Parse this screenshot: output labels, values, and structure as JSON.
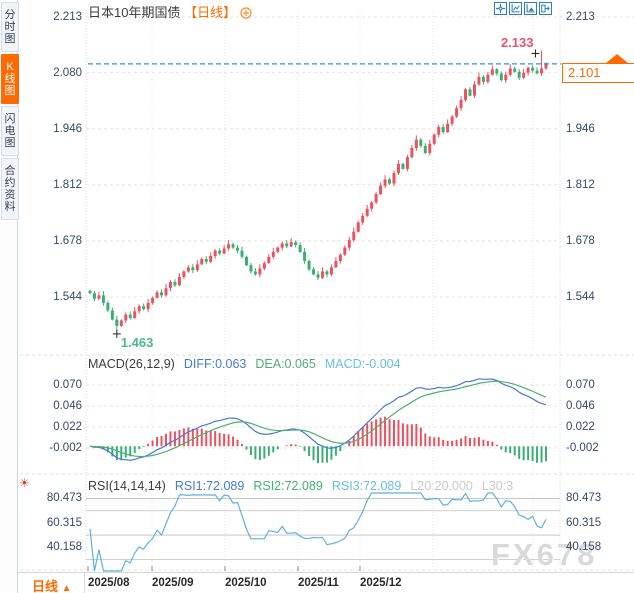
{
  "app": {
    "watermark": "FX678"
  },
  "sidebar": {
    "items": [
      {
        "label": "分时图",
        "active": false
      },
      {
        "label": "K线图",
        "active": true
      },
      {
        "label": "闪电图",
        "active": false
      },
      {
        "label": "合约资料",
        "active": false
      }
    ]
  },
  "header": {
    "title": "日本10年期国债",
    "interval_badge": "【日线】"
  },
  "toolbar": {
    "icons": [
      "crosshair",
      "axis-scale",
      "draw-chart",
      "export"
    ]
  },
  "icons": [
    "circle-plus-icon",
    "sun-icon",
    "up-triangle-alert-icon"
  ],
  "colors": {
    "up": "#e8535f",
    "down": "#3aae73",
    "accent": "#ff6a00",
    "diff": "#4679d2",
    "dea": "#4fae6f",
    "macd_val": "#66c0dd",
    "rsi": "#5fb0e0",
    "last_line": "#2b8ff0",
    "axis_text": "#35476b",
    "high_ann": "#e8546a",
    "low_ann": "#4cb795",
    "muted": "#c9c9c9"
  },
  "price_axis": {
    "left": [
      "2.213",
      "2.080",
      "1.946",
      "1.812",
      "1.678",
      "1.544"
    ],
    "right": [
      "2.213",
      "1.946",
      "1.812",
      "1.678",
      "1.544"
    ]
  },
  "indicators": {
    "macd": {
      "name": "MACD(26,12,9)",
      "values": [
        {
          "text": "DIFF:0.063",
          "color": "#4679d2"
        },
        {
          "text": "DEA:0.065",
          "color": "#4fae6f"
        },
        {
          "text": "MACD:-0.004",
          "color": "#66c0dd"
        }
      ],
      "y_ticks": [
        "0.070",
        "0.046",
        "0.022",
        "-0.002"
      ]
    },
    "rsi": {
      "name": "RSI(14,14,14)",
      "values": [
        {
          "text": "RSI1:72.089",
          "color": "#4679d2"
        },
        {
          "text": "RSI2:72.089",
          "color": "#3eb370"
        },
        {
          "text": "RSI3:72.089",
          "color": "#66c0dd"
        },
        {
          "text": "L20:20.000",
          "color": "#c9c9c9"
        },
        {
          "text": "L30:3",
          "color": "#c9c9c9"
        }
      ],
      "y_ticks": [
        "80.473",
        "60.315",
        "40.158"
      ]
    }
  },
  "bottom_bar": {
    "period": "日线",
    "arrow": "▲",
    "dates": [
      "2025/08",
      "2025/09",
      "2025/10",
      "2025/11",
      "2025/12"
    ]
  },
  "annotations": {
    "high": "2.133",
    "low": "1.463",
    "last": "2.101"
  },
  "chart_data": [
    {
      "type": "candlestick",
      "title": "日本10年期国债 日线",
      "x_labels": [
        "2025/08",
        "2025/09",
        "2025/10",
        "2025/11",
        "2025/12"
      ],
      "y_ticks": [
        2.213,
        2.08,
        1.946,
        1.812,
        1.678,
        1.544
      ],
      "ylim": [
        1.41,
        2.24
      ],
      "closes": [
        1.553,
        1.54,
        1.548,
        1.53,
        1.512,
        1.49,
        1.475,
        1.488,
        1.502,
        1.494,
        1.51,
        1.522,
        1.515,
        1.53,
        1.542,
        1.555,
        1.548,
        1.565,
        1.58,
        1.572,
        1.592,
        1.605,
        1.615,
        1.608,
        1.622,
        1.635,
        1.628,
        1.642,
        1.655,
        1.648,
        1.66,
        1.67,
        1.662,
        1.655,
        1.64,
        1.62,
        1.605,
        1.598,
        1.612,
        1.625,
        1.64,
        1.652,
        1.662,
        1.672,
        1.665,
        1.675,
        1.668,
        1.652,
        1.63,
        1.61,
        1.598,
        1.59,
        1.605,
        1.598,
        1.615,
        1.63,
        1.645,
        1.662,
        1.68,
        1.7,
        1.722,
        1.738,
        1.755,
        1.77,
        1.79,
        1.81,
        1.825,
        1.815,
        1.84,
        1.862,
        1.85,
        1.878,
        1.9,
        1.92,
        1.905,
        1.888,
        1.91,
        1.932,
        1.95,
        1.938,
        1.958,
        1.975,
        1.995,
        2.015,
        2.04,
        2.025,
        2.052,
        2.07,
        2.058,
        2.075,
        2.088,
        2.078,
        2.062,
        2.075,
        2.09,
        2.082,
        2.068,
        2.08,
        2.092,
        2.085,
        2.078,
        2.09,
        2.101
      ],
      "low_point": {
        "index": 6,
        "value": 1.463,
        "label": "1.463"
      },
      "high_point": {
        "index": 101,
        "value": 2.133,
        "label": "2.133"
      },
      "last_price": 2.101,
      "last_price_label": "2.101"
    },
    {
      "type": "line",
      "name": "MACD(26,12,9)",
      "params": [
        26,
        12,
        9
      ],
      "diff_last": 0.063,
      "dea_last": 0.065,
      "macd_last": -0.004,
      "y_ticks": [
        0.07,
        0.046,
        0.022,
        -0.002
      ],
      "derived_from": "closes"
    },
    {
      "type": "line",
      "name": "RSI(14,14,14)",
      "params": [
        14,
        14,
        14
      ],
      "rsi1_last": 72.089,
      "rsi2_last": 72.089,
      "rsi3_last": 72.089,
      "threshold_labels": [
        "L20:20.000",
        "L30:3"
      ],
      "y_ticks": [
        80.473,
        60.315,
        40.158
      ],
      "derived_from": "closes"
    }
  ]
}
